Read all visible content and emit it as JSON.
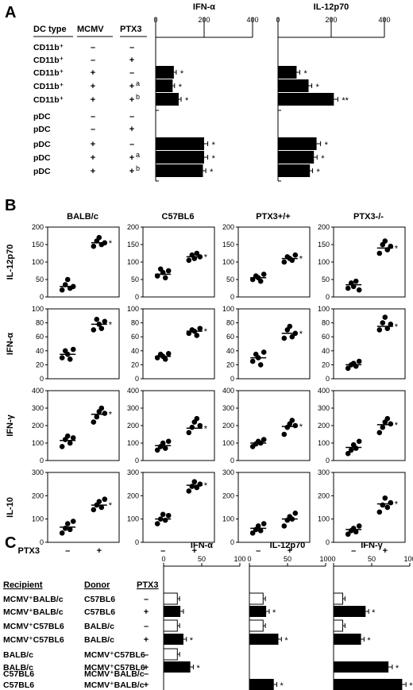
{
  "labels": {
    "panel_a": "A",
    "panel_b": "B",
    "panel_c": "C"
  },
  "panel_a": {
    "headers": {
      "dc_type": "DC type",
      "mcmv": "MCMV",
      "ptx3": "PTX3"
    },
    "rows": [
      {
        "dc": "CD11b⁺",
        "mcmv": "–",
        "ptx3": "–",
        "sup": ""
      },
      {
        "dc": "CD11b⁺",
        "mcmv": "–",
        "ptx3": "+",
        "sup": ""
      },
      {
        "dc": "CD11b⁺",
        "mcmv": "+",
        "ptx3": "–",
        "sup": ""
      },
      {
        "dc": "CD11b⁺",
        "mcmv": "+",
        "ptx3": "+",
        "sup": "a"
      },
      {
        "dc": "CD11b⁺",
        "mcmv": "+",
        "ptx3": "+",
        "sup": "b"
      },
      {
        "dc": "pDC",
        "mcmv": "–",
        "ptx3": "–",
        "sup": ""
      },
      {
        "dc": "pDC",
        "mcmv": "–",
        "ptx3": "+",
        "sup": ""
      },
      {
        "dc": "pDC",
        "mcmv": "+",
        "ptx3": "–",
        "sup": ""
      },
      {
        "dc": "pDC",
        "mcmv": "+",
        "ptx3": "+",
        "sup": "a"
      },
      {
        "dc": "pDC",
        "mcmv": "+",
        "ptx3": "+",
        "sup": "b"
      }
    ]
  },
  "panel_b": {
    "columns": [
      "BALB/c",
      "C57BL6",
      "PTX3+/+",
      "PTX3-/-"
    ],
    "rows": [
      "IL-12p70",
      "IFN-α",
      "IFN-γ",
      "IL-10"
    ],
    "x_title": "PTX3",
    "x_labels": [
      "–",
      "+"
    ]
  },
  "panel_c": {
    "headers": {
      "recipient": "Recipient",
      "donor": "Donor",
      "ptx3": "PTX3"
    },
    "rows": [
      {
        "recipient": "MCMV⁺BALB/c",
        "donor": "C57BL6",
        "ptx3": "–"
      },
      {
        "recipient": "MCMV⁺BALB/c",
        "donor": "C57BL6",
        "ptx3": "+"
      },
      {
        "recipient": "MCMV⁺C57BL6",
        "donor": "BALB/c",
        "ptx3": "–"
      },
      {
        "recipient": "MCMV⁺C57BL6",
        "donor": "BALB/c",
        "ptx3": "+"
      },
      {
        "recipient": "BALB/c",
        "donor": "MCMV⁺C57BL6",
        "ptx3": "–"
      },
      {
        "recipient": "BALB/c",
        "donor": "MCMV⁺C57BL6",
        "ptx3": "+"
      },
      {
        "recipient": "C57BL6",
        "donor": "MCMV⁺BALB/c",
        "ptx3": "–"
      },
      {
        "recipient": "C57BL6",
        "donor": "MCMV⁺BALB/c",
        "ptx3": "+"
      }
    ]
  },
  "chart_data": [
    {
      "panel": "A",
      "type": "bar",
      "title": "IFN-α",
      "orientation": "horizontal",
      "xlim": [
        0,
        400
      ],
      "ticks": [
        0,
        200,
        400
      ],
      "values": [
        0,
        0,
        75,
        70,
        95,
        0,
        0,
        200,
        200,
        195
      ],
      "errors": [
        0,
        0,
        10,
        8,
        10,
        0,
        0,
        15,
        15,
        12
      ],
      "annotations": [
        "",
        "",
        "*",
        "*",
        "*",
        "",
        "",
        "*",
        "*",
        "*"
      ]
    },
    {
      "panel": "A",
      "type": "bar",
      "title": "IL-12p70",
      "orientation": "horizontal",
      "xlim": [
        0,
        400
      ],
      "ticks": [
        0,
        200,
        400
      ],
      "values": [
        0,
        0,
        70,
        115,
        210,
        0,
        0,
        145,
        135,
        120
      ],
      "errors": [
        0,
        0,
        12,
        12,
        15,
        0,
        0,
        15,
        12,
        10
      ],
      "annotations": [
        "",
        "",
        "*",
        "*",
        "**",
        "",
        "",
        "*",
        "*",
        "*"
      ]
    },
    {
      "panel": "B",
      "type": "scatter",
      "columns": [
        "BALB/c",
        "C57BL6",
        "PTX3+/+",
        "PTX3-/-"
      ],
      "categories": [
        "–",
        "+"
      ],
      "rows": [
        {
          "name": "IL-12p70",
          "ylim": [
            0,
            200
          ],
          "ticks": [
            0,
            50,
            100,
            150,
            200
          ],
          "series": [
            {
              "minus": [
                20,
                35,
                50,
                25,
                30
              ],
              "plus": [
                145,
                160,
                170,
                150,
                155
              ],
              "mean": [
                30,
                155
              ],
              "sig": "*"
            },
            {
              "minus": [
                60,
                80,
                70,
                55,
                75
              ],
              "plus": [
                105,
                120,
                110,
                125,
                115
              ],
              "mean": [
                65,
                115
              ],
              "sig": "*"
            },
            {
              "minus": [
                50,
                60,
                55,
                45,
                65
              ],
              "plus": [
                100,
                115,
                110,
                105,
                120
              ],
              "mean": [
                55,
                110
              ],
              "sig": "*"
            },
            {
              "minus": [
                25,
                40,
                30,
                45,
                20
              ],
              "plus": [
                125,
                150,
                160,
                135,
                145
              ],
              "mean": [
                35,
                140
              ],
              "sig": "*"
            }
          ]
        },
        {
          "name": "IFN-α",
          "ylim": [
            0,
            100
          ],
          "ticks": [
            0,
            20,
            40,
            60,
            80,
            100
          ],
          "series": [
            {
              "minus": [
                30,
                40,
                35,
                28,
                42
              ],
              "plus": [
                70,
                85,
                78,
                72,
                82
              ],
              "mean": [
                35,
                78
              ],
              "sig": "*"
            },
            {
              "minus": [
                30,
                35,
                32,
                28,
                36
              ],
              "plus": [
                65,
                70,
                68,
                62,
                72
              ],
              "mean": [
                32,
                68
              ],
              "sig": "*"
            },
            {
              "minus": [
                25,
                35,
                30,
                20,
                38
              ],
              "plus": [
                58,
                70,
                75,
                60,
                65
              ],
              "mean": [
                30,
                65
              ],
              "sig": "*"
            },
            {
              "minus": [
                15,
                20,
                22,
                18,
                25
              ],
              "plus": [
                70,
                80,
                88,
                72,
                78
              ],
              "mean": [
                20,
                75
              ],
              "sig": "*"
            }
          ]
        },
        {
          "name": "IFN-γ",
          "ylim": [
            0,
            400
          ],
          "ticks": [
            0,
            100,
            200,
            300,
            400
          ],
          "series": [
            {
              "minus": [
                80,
                120,
                140,
                100,
                130
              ],
              "plus": [
                220,
                250,
                280,
                300,
                270
              ],
              "mean": [
                115,
                265
              ],
              "sig": "*"
            },
            {
              "minus": [
                60,
                80,
                100,
                70,
                110
              ],
              "plus": [
                160,
                190,
                220,
                240,
                200
              ],
              "mean": [
                85,
                185
              ],
              "sig": "*"
            },
            {
              "minus": [
                80,
                95,
                110,
                100,
                120
              ],
              "plus": [
                150,
                190,
                210,
                230,
                200
              ],
              "mean": [
                100,
                195
              ],
              "sig": "*"
            },
            {
              "minus": [
                40,
                60,
                90,
                70,
                110
              ],
              "plus": [
                160,
                190,
                220,
                240,
                210
              ],
              "mean": [
                75,
                205
              ],
              "sig": "*"
            }
          ]
        },
        {
          "name": "IL-10",
          "ylim": [
            0,
            300
          ],
          "ticks": [
            0,
            100,
            200,
            300
          ],
          "series": [
            {
              "minus": [
                40,
                60,
                80,
                55,
                90
              ],
              "plus": [
                140,
                160,
                175,
                150,
                185
              ],
              "mean": [
                65,
                160
              ],
              "sig": "*"
            },
            {
              "minus": [
                80,
                100,
                120,
                95,
                115
              ],
              "plus": [
                220,
                240,
                260,
                235,
                250
              ],
              "mean": [
                100,
                245
              ],
              "sig": "*"
            },
            {
              "minus": [
                40,
                55,
                70,
                50,
                80
              ],
              "plus": [
                70,
                95,
                110,
                100,
                125
              ],
              "mean": [
                60,
                100
              ],
              "sig": ""
            },
            {
              "minus": [
                35,
                50,
                60,
                45,
                70
              ],
              "plus": [
                130,
                160,
                190,
                150,
                170
              ],
              "mean": [
                55,
                165
              ],
              "sig": "*"
            }
          ]
        }
      ]
    },
    {
      "panel": "C",
      "type": "bar",
      "title": "IFN-α",
      "orientation": "horizontal",
      "xlim": [
        0,
        100
      ],
      "ticks": [
        0,
        50,
        100
      ],
      "values": [
        18,
        22,
        18,
        26,
        18,
        35,
        0,
        0
      ],
      "errors": [
        3,
        4,
        3,
        4,
        3,
        4,
        0,
        0
      ],
      "annotations": [
        "",
        "",
        "",
        "*",
        "",
        "*",
        "",
        ""
      ]
    },
    {
      "panel": "C",
      "type": "bar",
      "title": "IL-12p70",
      "orientation": "horizontal",
      "xlim": [
        0,
        100
      ],
      "ticks": [
        0,
        50,
        100
      ],
      "values": [
        18,
        22,
        18,
        38,
        0,
        0,
        0,
        32
      ],
      "errors": [
        3,
        4,
        3,
        4,
        0,
        0,
        0,
        4
      ],
      "annotations": [
        "",
        "*",
        "",
        "*",
        "",
        "",
        "",
        "*"
      ]
    },
    {
      "panel": "C",
      "type": "bar",
      "title": "IFN-γ",
      "orientation": "horizontal",
      "xlim": [
        0,
        100
      ],
      "ticks": [
        0,
        50,
        100
      ],
      "values": [
        12,
        42,
        12,
        36,
        0,
        72,
        0,
        90
      ],
      "errors": [
        3,
        4,
        3,
        4,
        0,
        5,
        0,
        5
      ],
      "annotations": [
        "",
        "*",
        "",
        "*",
        "",
        "*",
        "",
        "*"
      ]
    }
  ]
}
